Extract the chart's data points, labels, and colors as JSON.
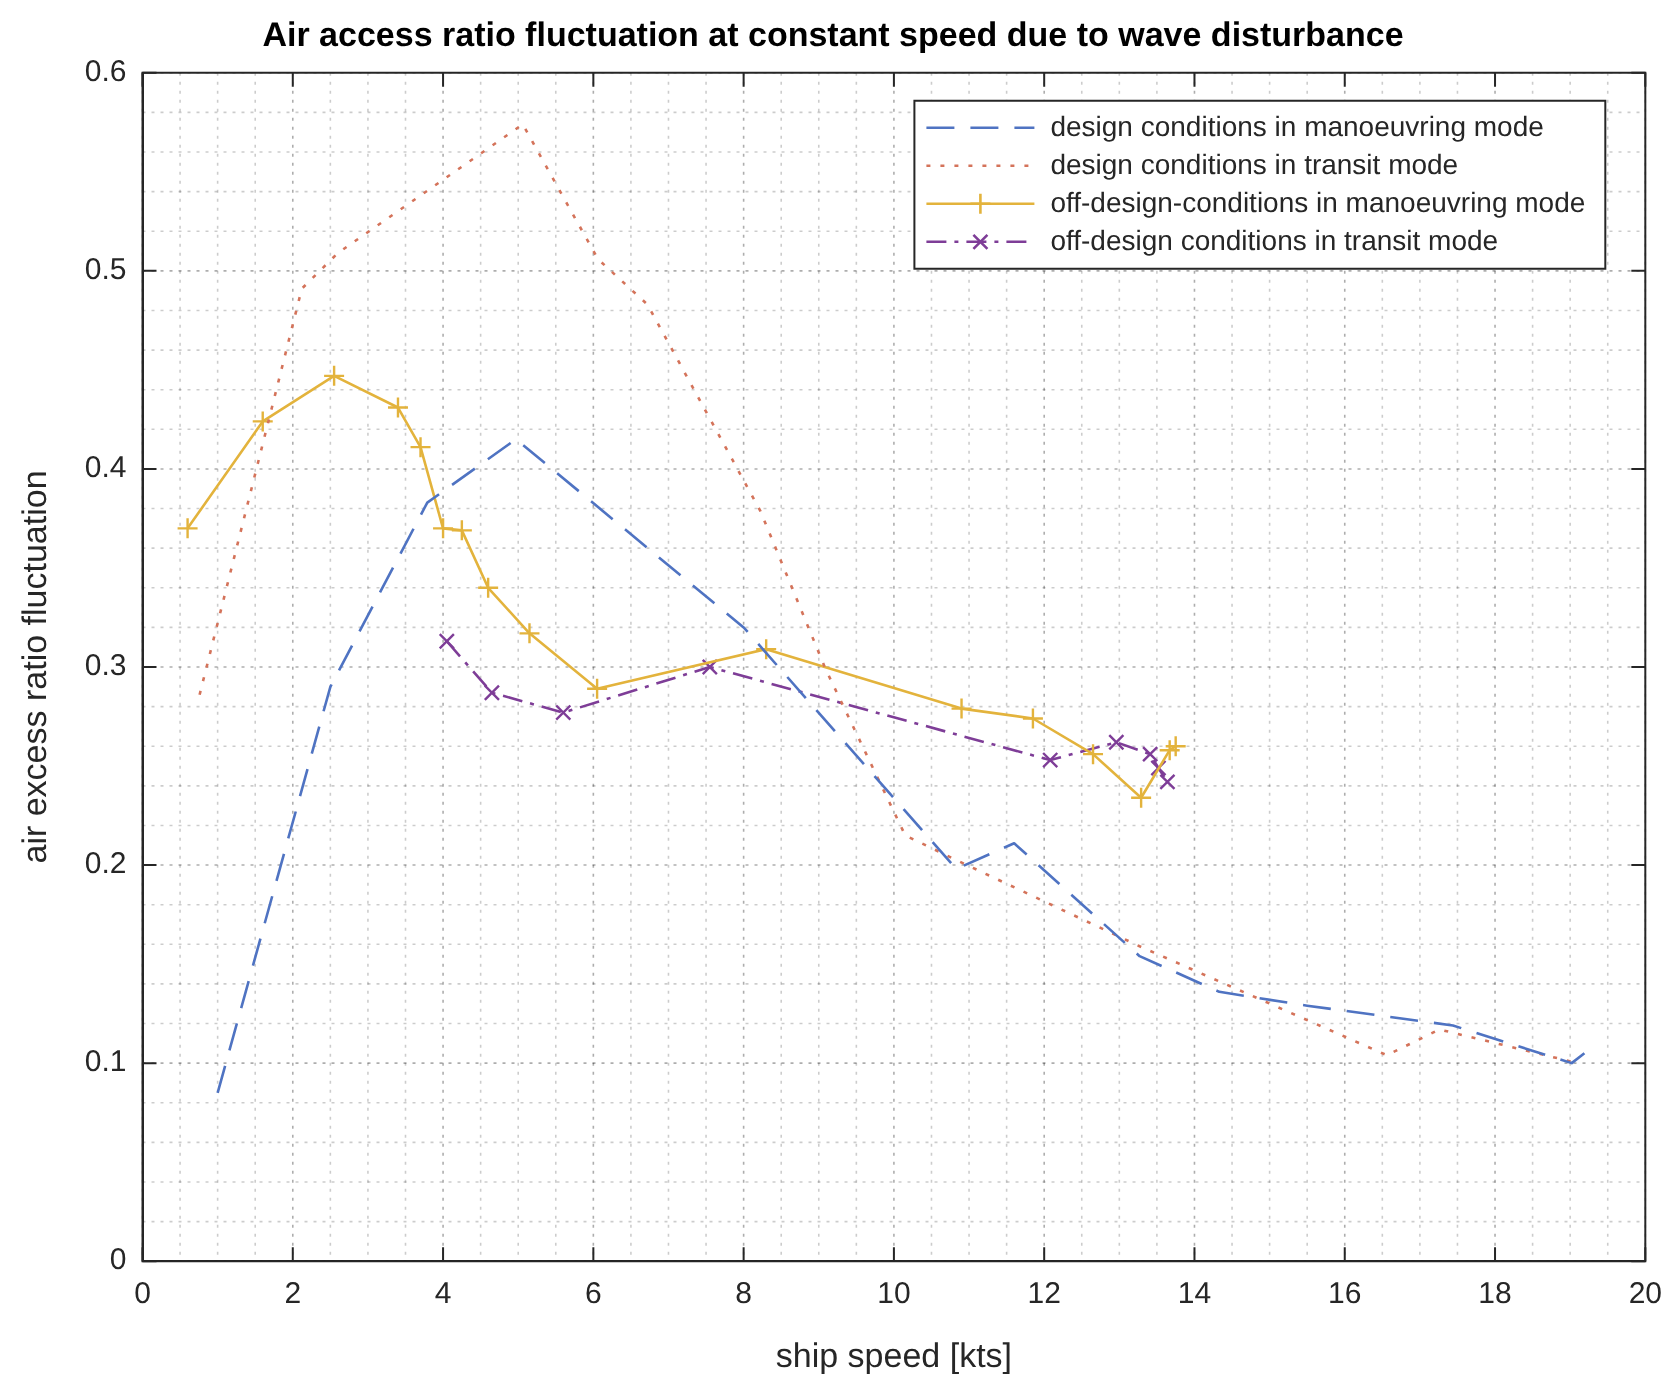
{
  "chart_data": {
    "type": "line",
    "title": "Air access ratio fluctuation at constant speed due to wave disturbance",
    "xlabel": "ship speed [kts]",
    "ylabel": "air excess ratio fluctuation",
    "xlim": [
      0,
      20
    ],
    "xticks": [
      0,
      2,
      4,
      6,
      8,
      10,
      12,
      14,
      16,
      18,
      20
    ],
    "ylim": [
      0,
      0.6
    ],
    "yticks": [
      0,
      0.1,
      0.2,
      0.3,
      0.4,
      0.5,
      0.6
    ],
    "grid": true,
    "legend": "top right",
    "series": [
      {
        "name": "design conditions in manoeuvring mode",
        "color": "#4f73c2",
        "line_style": "dashed",
        "marker": "none",
        "x": [
          1.0,
          2.5,
          3.79,
          4.97,
          8.0,
          10.83,
          11.6,
          13.27,
          14.33,
          15.5,
          16.47,
          17.44,
          19.02,
          19.29
        ],
        "values": [
          0.085,
          0.29,
          0.383,
          0.415,
          0.32,
          0.198,
          0.211,
          0.154,
          0.136,
          0.129,
          0.124,
          0.119,
          0.1,
          0.108
        ]
      },
      {
        "name": "design conditions in transit mode",
        "color": "#d4735a",
        "line_style": "dotted",
        "marker": "none",
        "x": [
          0.76,
          2.12,
          2.6,
          5.06,
          6.06,
          6.72,
          8.22,
          9.09,
          10.15,
          10.86,
          13.27,
          16.56,
          17.26,
          19.1
        ],
        "values": [
          0.286,
          0.491,
          0.509,
          0.574,
          0.506,
          0.483,
          0.379,
          0.299,
          0.215,
          0.202,
          0.159,
          0.104,
          0.117,
          0.1
        ]
      },
      {
        "name": "off-design-conditions in manoeuvring mode",
        "color": "#e3b33c",
        "line_style": "solid",
        "marker": "cross",
        "x": [
          0.6,
          1.6,
          2.55,
          3.4,
          3.7,
          4.0,
          4.25,
          4.6,
          5.15,
          6.05,
          8.3,
          10.9,
          11.85,
          12.65,
          13.29,
          13.67,
          13.75
        ],
        "values": [
          0.37,
          0.424,
          0.447,
          0.431,
          0.411,
          0.37,
          0.369,
          0.34,
          0.317,
          0.289,
          0.309,
          0.279,
          0.274,
          0.256,
          0.234,
          0.258,
          0.26
        ]
      },
      {
        "name": "off-design conditions in transit mode",
        "color": "#7e3d97",
        "line_style": "dashdot",
        "marker": "x",
        "x": [
          4.05,
          4.65,
          5.6,
          7.55,
          12.08,
          12.96,
          13.41,
          13.52,
          13.64
        ],
        "values": [
          0.313,
          0.287,
          0.277,
          0.3,
          0.253,
          0.262,
          0.256,
          0.249,
          0.242
        ]
      }
    ]
  }
}
